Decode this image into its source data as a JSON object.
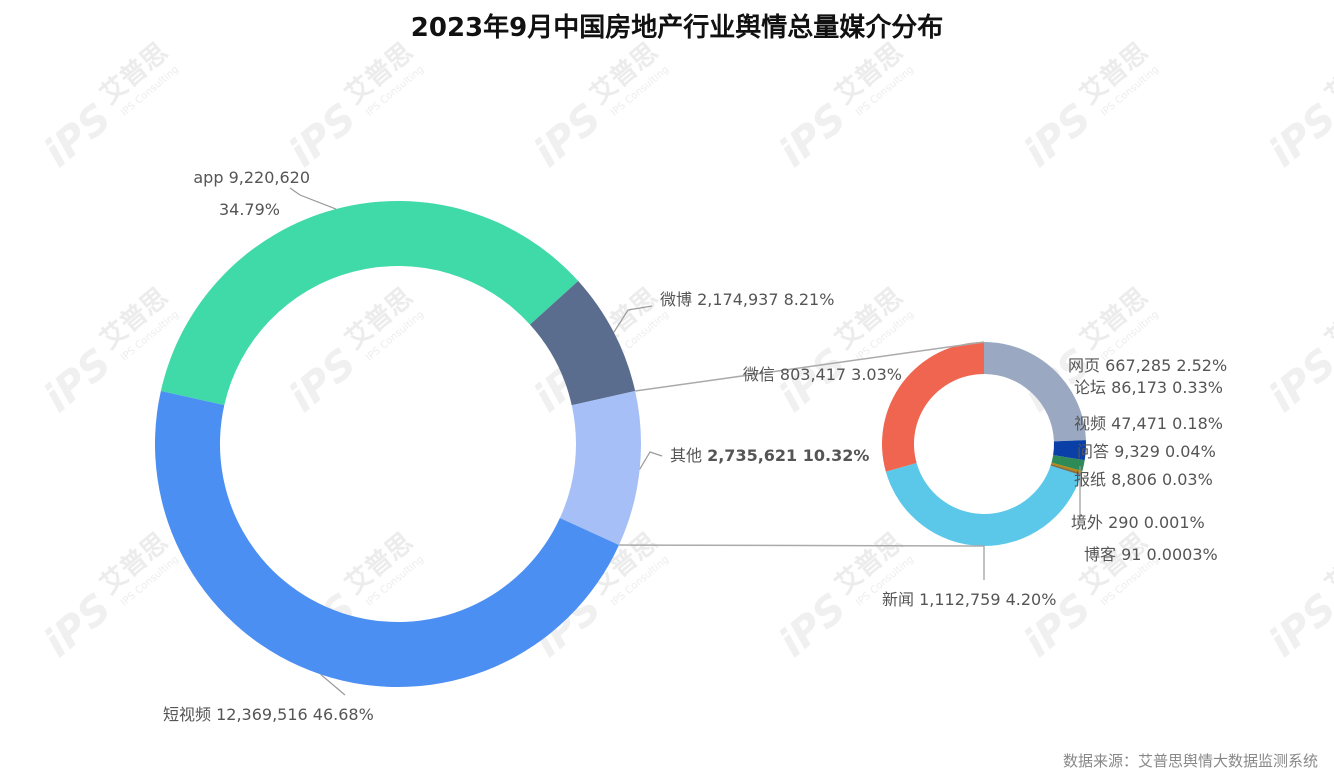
{
  "chart_data": [
    {
      "type": "pie",
      "title": "2023年9月中国房地产行业舆情总量媒介分布",
      "series": [
        {
          "name": "app",
          "value": 9220620,
          "value_label": "9,220,620",
          "percent": "34.79%",
          "color": "#40d9a8"
        },
        {
          "name": "微博",
          "value": 2174937,
          "value_label": "2,174,937",
          "percent": "8.21%",
          "color": "#5a6d8e"
        },
        {
          "name": "其他",
          "value": 2735621,
          "value_label": "2,735,621",
          "percent": "10.32%",
          "color": "#a7bff7"
        },
        {
          "name": "短视频",
          "value": 12369516,
          "value_label": "12,369,516",
          "percent": "46.68%",
          "color": "#4c8ff2"
        }
      ]
    },
    {
      "type": "pie",
      "series": [
        {
          "name": "网页",
          "value": 667285,
          "value_label": "667,285",
          "percent": "2.52%",
          "color": "#9aa9c1"
        },
        {
          "name": "论坛",
          "value": 86173,
          "value_label": "86,173",
          "percent": "0.33%",
          "color": "#0b3fa8"
        },
        {
          "name": "视频",
          "value": 47471,
          "value_label": "47,471",
          "percent": "0.18%",
          "color": "#2e8b57"
        },
        {
          "name": "问答",
          "value": 9329,
          "value_label": "9,329",
          "percent": "0.04%",
          "color": "#b8860b"
        },
        {
          "name": "报纸",
          "value": 8806,
          "value_label": "8,806",
          "percent": "0.03%",
          "color": "#8a6d3b"
        },
        {
          "name": "境外",
          "value": 290,
          "value_label": "290",
          "percent": "0.001%",
          "color": "#777777"
        },
        {
          "name": "博客",
          "value": 91,
          "value_label": "91",
          "percent": "0.0003%",
          "color": "#444444"
        },
        {
          "name": "新闻",
          "value": 1112759,
          "value_label": "1,112,759",
          "percent": "4.20%",
          "color": "#5bc8ea"
        },
        {
          "name": "微信",
          "value": 803417,
          "value_label": "803,417",
          "percent": "3.03%",
          "color": "#f0654f"
        }
      ]
    }
  ],
  "source": "数据来源：艾普思舆情大数据监测系统",
  "watermark": {
    "brand": "艾普思",
    "logo": "iPS",
    "sub": "IPS Consulting"
  }
}
